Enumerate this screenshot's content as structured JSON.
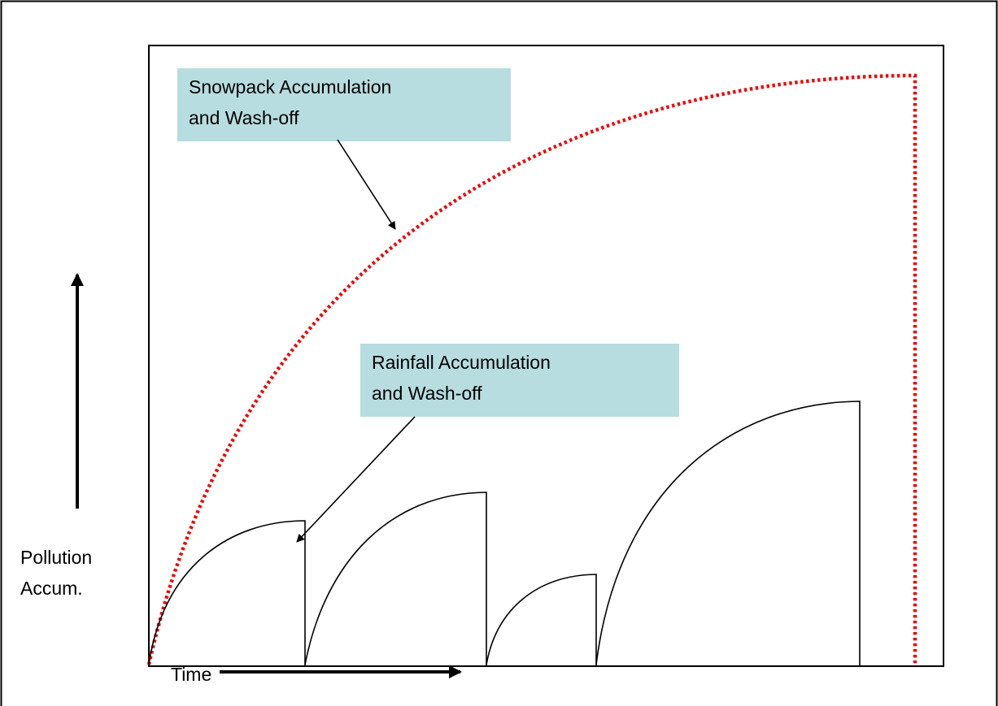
{
  "callouts": {
    "snowpack": [
      "Snowpack Accumulation",
      "and Wash-off"
    ],
    "rainfall": [
      "Rainfall Accumulation",
      "and Wash-off"
    ]
  },
  "axes": {
    "y": [
      "Pollution",
      "Accum."
    ],
    "x": "Time"
  }
}
